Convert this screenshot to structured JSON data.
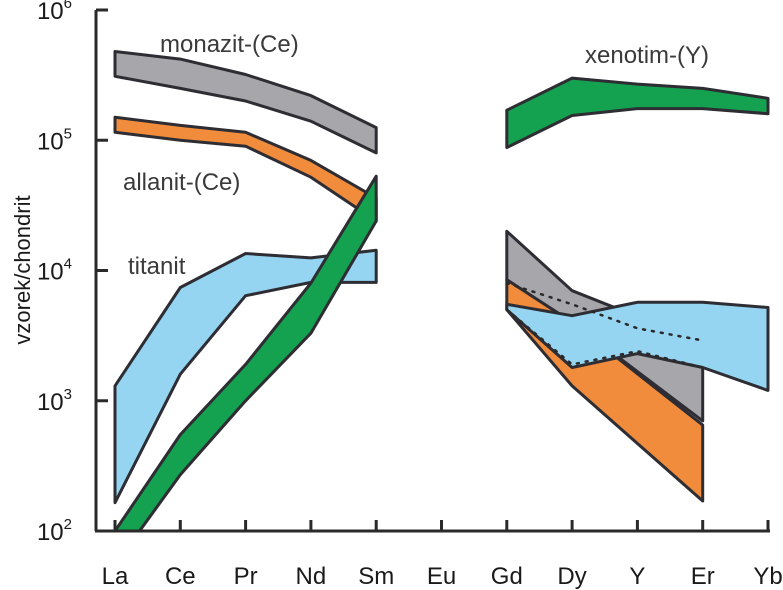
{
  "chart_data": {
    "type": "area",
    "title": "",
    "xlabel": "",
    "ylabel": "vzorek/chondrit",
    "yscale": "log",
    "ylim": [
      100,
      1000000
    ],
    "grid": false,
    "categories": [
      "La",
      "Ce",
      "Pr",
      "Nd",
      "Sm",
      "Eu",
      "Gd",
      "Dy",
      "Y",
      "Er",
      "Yb"
    ],
    "y_ticks": [
      {
        "base": "10",
        "exp": "2",
        "value": 100
      },
      {
        "base": "10",
        "exp": "3",
        "value": 1000
      },
      {
        "base": "10",
        "exp": "4",
        "value": 10000
      },
      {
        "base": "10",
        "exp": "5",
        "value": 100000
      },
      {
        "base": "10",
        "exp": "6",
        "value": 1000000
      }
    ],
    "series": [
      {
        "name": "monazit-(Ce)",
        "color": "#a7a7ab",
        "segments": [
          {
            "x": [
              "La",
              "Ce",
              "Pr",
              "Nd",
              "Sm"
            ],
            "upper": [
              480000,
              420000,
              320000,
              220000,
              125000
            ],
            "lower": [
              310000,
              250000,
              200000,
              140000,
              80000
            ]
          },
          {
            "x": [
              "Gd",
              "Dy",
              "Er"
            ],
            "upper": [
              20000,
              7000,
              2800
            ],
            "lower": [
              8500,
              4000,
              700
            ]
          }
        ]
      },
      {
        "name": "allanit-(Ce)",
        "color": "#f08c3c",
        "segments": [
          {
            "x": [
              "La",
              "Ce",
              "Pr",
              "Nd",
              "Sm"
            ],
            "upper": [
              150000,
              130000,
              115000,
              70000,
              36000
            ],
            "lower": [
              115000,
              100000,
              90000,
              52000,
              24000
            ]
          },
          {
            "x": [
              "Gd",
              "Dy",
              "Er"
            ],
            "upper": [
              8500,
              4000,
              650
            ],
            "lower": [
              5000,
              1300,
              170
            ]
          }
        ]
      },
      {
        "name": "titanit",
        "color": "#95d5f2",
        "segments": [
          {
            "x": [
              "La",
              "Ce",
              "Pr",
              "Nd",
              "Sm"
            ],
            "upper": [
              1300,
              7400,
              13500,
              12500,
              14300
            ],
            "lower": [
              165,
              1600,
              6400,
              8100,
              8100
            ]
          },
          {
            "x": [
              "Gd",
              "Dy",
              "Y",
              "Er",
              "Yb"
            ],
            "upper": [
              5500,
              4500,
              5700,
              5700,
              5200
            ],
            "lower": [
              5000,
              1800,
              2300,
              1800,
              1200
            ]
          }
        ]
      },
      {
        "name": "xenotim-(Y)",
        "color": "#14a250",
        "segments": [
          {
            "x": [
              "La",
              "Ce",
              "Pr",
              "Nd",
              "Sm"
            ],
            "upper": [
              100,
              550,
              1900,
              8000,
              53000
            ],
            "lower": [
              55,
              270,
              1000,
              3300,
              24000
            ]
          },
          {
            "x": [
              "Gd",
              "Dy",
              "Y",
              "Er",
              "Yb"
            ],
            "upper": [
              170000,
              300000,
              270000,
              250000,
              210000
            ],
            "lower": [
              88000,
              155000,
              175000,
              175000,
              160000
            ]
          }
        ]
      }
    ],
    "annotations": [
      {
        "text": "monazit-(Ce)",
        "series": "monazit-(Ce)"
      },
      {
        "text": "xenotim-(Y)",
        "series": "xenotim-(Y)"
      },
      {
        "text": "allanit-(Ce)",
        "series": "allanit-(Ce)"
      },
      {
        "text": "titanit",
        "series": "titanit"
      }
    ],
    "dotted_lines": [
      {
        "x": [
          "Gd",
          "Dy",
          "Y",
          "Er"
        ],
        "y": [
          8000,
          5500,
          3600,
          2900
        ]
      },
      {
        "x": [
          "Gd",
          "Dy",
          "Y",
          "Er"
        ],
        "y": [
          5000,
          1900,
          2400,
          1800
        ]
      }
    ]
  }
}
